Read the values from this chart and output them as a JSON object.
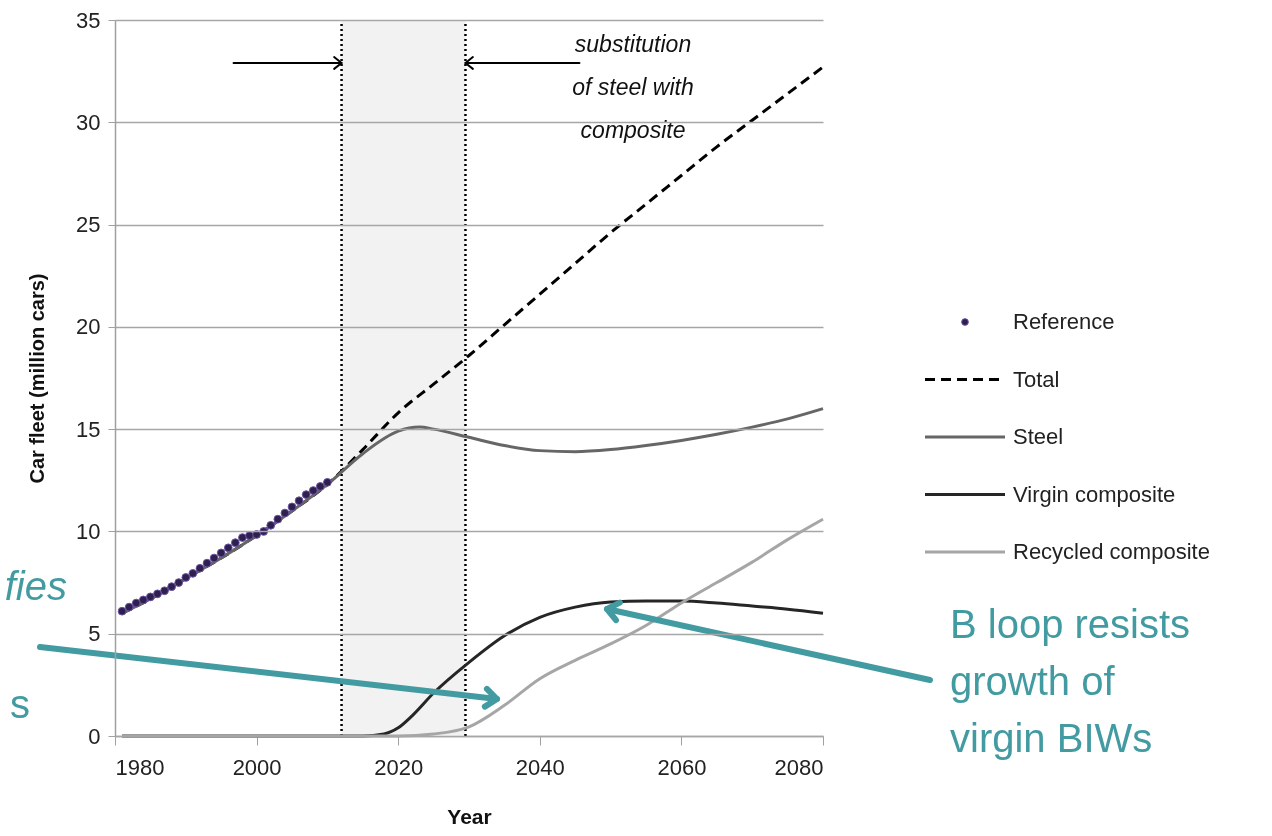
{
  "chart_data": {
    "type": "line",
    "xlabel": "Year",
    "ylabel": "Car fleet (million cars)",
    "xlim": [
      1980,
      2080
    ],
    "xticks": [
      1980,
      2000,
      2020,
      2040,
      2060,
      2080
    ],
    "ylim": [
      0,
      35
    ],
    "yticks": [
      0,
      5,
      10,
      15,
      20,
      25,
      30,
      35
    ],
    "grid": "y",
    "legend": "right",
    "series": [
      {
        "name": "Reference",
        "type": "scatter",
        "marker": "circle",
        "color": "#2e1f4f",
        "x": [
          1981,
          1982,
          1983,
          1984,
          1985,
          1986,
          1987,
          1988,
          1989,
          1990,
          1991,
          1992,
          1993,
          1994,
          1995,
          1996,
          1997,
          1998,
          1999,
          2000,
          2001,
          2002,
          2003,
          2004,
          2005,
          2006,
          2007,
          2008,
          2009,
          2010
        ],
        "values": [
          6.1,
          6.3,
          6.5,
          6.65,
          6.8,
          6.95,
          7.1,
          7.3,
          7.5,
          7.75,
          7.95,
          8.2,
          8.45,
          8.7,
          8.95,
          9.2,
          9.45,
          9.7,
          9.8,
          9.85,
          10.0,
          10.3,
          10.6,
          10.9,
          11.2,
          11.5,
          11.8,
          12.0,
          12.2,
          12.4
        ]
      },
      {
        "name": "Total",
        "type": "line",
        "line_style": "dashed",
        "color": "#000000",
        "x": [
          1981,
          1985,
          1990,
          1995,
          2000,
          2005,
          2010,
          2015,
          2020,
          2025,
          2030,
          2035,
          2040,
          2045,
          2050,
          2055,
          2060,
          2065,
          2070,
          2075,
          2080
        ],
        "values": [
          6.0,
          6.7,
          7.7,
          8.7,
          9.8,
          11.0,
          12.3,
          14.0,
          15.8,
          17.2,
          18.6,
          20.1,
          21.6,
          23.1,
          24.6,
          26.0,
          27.4,
          28.8,
          30.1,
          31.4,
          32.7
        ]
      },
      {
        "name": "Steel",
        "type": "line",
        "line_style": "solid",
        "color": "#666666",
        "x": [
          1981,
          1985,
          1990,
          1995,
          2000,
          2005,
          2010,
          2015,
          2020,
          2023,
          2025,
          2030,
          2035,
          2040,
          2045,
          2050,
          2055,
          2060,
          2065,
          2070,
          2075,
          2080
        ],
        "values": [
          6.0,
          6.7,
          7.7,
          8.7,
          9.8,
          11.0,
          12.3,
          13.8,
          14.9,
          15.1,
          15.0,
          14.6,
          14.2,
          13.95,
          13.9,
          14.0,
          14.2,
          14.45,
          14.75,
          15.1,
          15.5,
          16.0
        ]
      },
      {
        "name": "Virgin composite",
        "type": "line",
        "line_style": "solid",
        "color": "#262626",
        "x": [
          1981,
          2010,
          2015,
          2018,
          2020,
          2022,
          2025,
          2030,
          2035,
          2040,
          2045,
          2050,
          2055,
          2060,
          2065,
          2070,
          2075,
          2080
        ],
        "values": [
          0,
          0,
          0,
          0.1,
          0.4,
          1.0,
          2.1,
          3.6,
          4.9,
          5.8,
          6.3,
          6.55,
          6.6,
          6.6,
          6.5,
          6.35,
          6.2,
          6.0
        ]
      },
      {
        "name": "Recycled composite",
        "type": "line",
        "line_style": "solid",
        "color": "#a6a6a6",
        "x": [
          1981,
          2020,
          2025,
          2030,
          2035,
          2040,
          2045,
          2050,
          2055,
          2060,
          2065,
          2070,
          2075,
          2080
        ],
        "values": [
          0,
          0,
          0.1,
          0.45,
          1.5,
          2.8,
          3.7,
          4.5,
          5.4,
          6.5,
          7.5,
          8.5,
          9.6,
          10.6
        ]
      }
    ],
    "bands": [
      {
        "axis": "x",
        "from": 2012,
        "to": 2029.5,
        "color": "#f2f2f2"
      }
    ],
    "ref_lines": [
      {
        "axis": "x",
        "value": 2012,
        "line_style": "dotted",
        "color": "#000000"
      },
      {
        "axis": "x",
        "value": 2029.5,
        "line_style": "dotted",
        "color": "#000000"
      }
    ],
    "annotations": [
      {
        "text": "substitution of steel with composite",
        "x": 2029.5,
        "y": 32.9
      },
      "B loop resists growth of virgin BIWs",
      "fies",
      "s"
    ]
  }
}
